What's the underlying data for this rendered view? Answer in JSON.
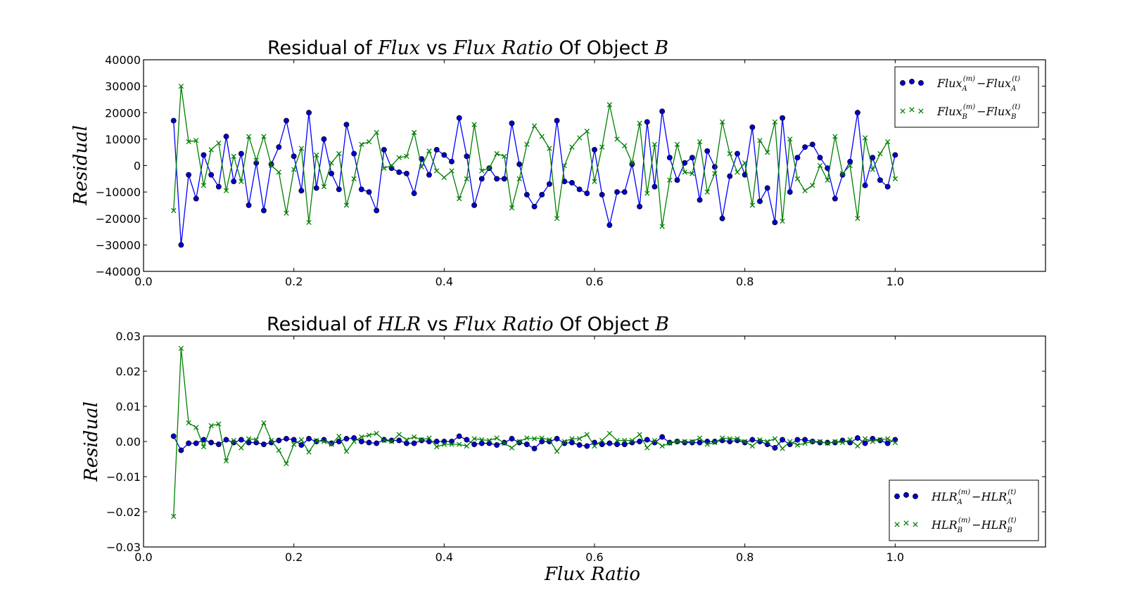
{
  "chart_data": [
    {
      "type": "line",
      "title": {
        "prefix": "Residual of ",
        "quantity": "Flux",
        "mid": " vs ",
        "ratio": "Flux Ratio",
        "of": " Of Object ",
        "object": "B"
      },
      "ylabel": "Residual",
      "xlabel": "",
      "xlim": [
        0.0,
        1.2
      ],
      "ylim": [
        -40000,
        40000
      ],
      "xticks": [
        "0.0",
        "0.2",
        "0.4",
        "0.6",
        "0.8",
        "1.0"
      ],
      "yticks": [
        "40000",
        "30000",
        "20000",
        "10000",
        "0",
        "−10000",
        "−20000",
        "−30000",
        "−40000"
      ],
      "grid": false,
      "legend_position": "top-right",
      "x": [
        0.04,
        0.05,
        0.06,
        0.07,
        0.08,
        0.09,
        0.1,
        0.11,
        0.12,
        0.13,
        0.14,
        0.15,
        0.16,
        0.17,
        0.18,
        0.19,
        0.2,
        0.21,
        0.22,
        0.23,
        0.24,
        0.25,
        0.26,
        0.27,
        0.28,
        0.29,
        0.3,
        0.31,
        0.32,
        0.33,
        0.34,
        0.35,
        0.36,
        0.37,
        0.38,
        0.39,
        0.4,
        0.41,
        0.42,
        0.43,
        0.44,
        0.45,
        0.46,
        0.47,
        0.48,
        0.49,
        0.5,
        0.51,
        0.52,
        0.53,
        0.54,
        0.55,
        0.56,
        0.57,
        0.58,
        0.59,
        0.6,
        0.61,
        0.62,
        0.63,
        0.64,
        0.65,
        0.66,
        0.67,
        0.68,
        0.69,
        0.7,
        0.71,
        0.72,
        0.73,
        0.74,
        0.75,
        0.76,
        0.77,
        0.78,
        0.79,
        0.8,
        0.81,
        0.82,
        0.83,
        0.84,
        0.85,
        0.86,
        0.87,
        0.88,
        0.89,
        0.9,
        0.91,
        0.92,
        0.93,
        0.94,
        0.95,
        0.96,
        0.97,
        0.98,
        0.99,
        1.0
      ],
      "series": [
        {
          "legend_base": "Flux",
          "legend_var_a": "A",
          "legend_var_b": "A",
          "marker": "circle",
          "color": "#0000ff",
          "marker_color": "#0000cc",
          "values": [
            17000,
            -30000,
            -3500,
            -12500,
            4000,
            -3500,
            -8000,
            11000,
            -6000,
            4500,
            -15000,
            1000,
            -17000,
            500,
            7000,
            17000,
            3500,
            -9500,
            20000,
            -8500,
            10000,
            -3000,
            -9000,
            15500,
            4500,
            -9000,
            -10000,
            -17000,
            6000,
            -1000,
            -2500,
            -3000,
            -10500,
            2500,
            -3500,
            6000,
            4000,
            1500,
            18000,
            3500,
            -15000,
            -5000,
            -1000,
            -5000,
            -5000,
            16000,
            500,
            -11000,
            -15500,
            -11000,
            -7000,
            17000,
            -6000,
            -6500,
            -9000,
            -10500,
            6000,
            -11000,
            -22500,
            -10000,
            -10000,
            500,
            -15500,
            16500,
            -8000,
            20500,
            3000,
            -5500,
            1000,
            3000,
            -13000,
            5500,
            -500,
            -20000,
            -4000,
            4500,
            -3500,
            14500,
            -13500,
            -8500,
            -21500,
            18000,
            -10000,
            3000,
            7000,
            8000,
            3000,
            -1000,
            -12500,
            -3500,
            1500,
            20000,
            -7500,
            3000,
            -5500,
            -8000,
            4000
          ]
        },
        {
          "legend_base": "Flux",
          "legend_var_a": "B",
          "legend_var_b": "B",
          "marker": "x",
          "color": "#008000",
          "marker_color": "#008000",
          "values": [
            -17000,
            30000,
            9000,
            9500,
            -7500,
            6000,
            8500,
            -9500,
            3500,
            -6000,
            11000,
            2000,
            11000,
            0,
            -2500,
            -18000,
            -1500,
            6500,
            -21500,
            4000,
            -8000,
            1000,
            4500,
            -15000,
            -5000,
            8000,
            9000,
            12500,
            -1000,
            0,
            3000,
            3500,
            12500,
            -500,
            5500,
            -2000,
            -4500,
            -2000,
            -12500,
            -5000,
            15500,
            -2000,
            -1000,
            4500,
            3500,
            -16000,
            -5000,
            8000,
            15000,
            11000,
            6500,
            -20000,
            0,
            7000,
            10500,
            13000,
            -6000,
            7000,
            23000,
            10000,
            7500,
            1000,
            16000,
            -10500,
            8000,
            -23000,
            -5500,
            8000,
            -2500,
            -3000,
            9000,
            -10000,
            -3000,
            16500,
            4500,
            -2500,
            1000,
            -15000,
            9500,
            5000,
            16500,
            -21000,
            10000,
            -5000,
            -9500,
            -7500,
            0,
            -5500,
            11000,
            -3000,
            0,
            -20000,
            10500,
            -1500,
            4500,
            9000,
            -5000
          ]
        }
      ]
    },
    {
      "type": "line",
      "title": {
        "prefix": "Residual of ",
        "quantity": "HLR",
        "mid": " vs ",
        "ratio": "Flux Ratio",
        "of": " Of Object ",
        "object": "B"
      },
      "ylabel": "Residual",
      "xlabel": "Flux Ratio",
      "xlim": [
        0.0,
        1.2
      ],
      "ylim": [
        -0.03,
        0.03
      ],
      "xticks": [
        "0.0",
        "0.2",
        "0.4",
        "0.6",
        "0.8",
        "1.0"
      ],
      "yticks": [
        "0.03",
        "0.02",
        "0.01",
        "0.00",
        "−0.01",
        "−0.02",
        "−0.03"
      ],
      "grid": false,
      "legend_position": "lower-right",
      "x": [
        0.04,
        0.05,
        0.06,
        0.07,
        0.08,
        0.09,
        0.1,
        0.11,
        0.12,
        0.13,
        0.14,
        0.15,
        0.16,
        0.17,
        0.18,
        0.19,
        0.2,
        0.21,
        0.22,
        0.23,
        0.24,
        0.25,
        0.26,
        0.27,
        0.28,
        0.29,
        0.3,
        0.31,
        0.32,
        0.33,
        0.34,
        0.35,
        0.36,
        0.37,
        0.38,
        0.39,
        0.4,
        0.41,
        0.42,
        0.43,
        0.44,
        0.45,
        0.46,
        0.47,
        0.48,
        0.49,
        0.5,
        0.51,
        0.52,
        0.53,
        0.54,
        0.55,
        0.56,
        0.57,
        0.58,
        0.59,
        0.6,
        0.61,
        0.62,
        0.63,
        0.64,
        0.65,
        0.66,
        0.67,
        0.68,
        0.69,
        0.7,
        0.71,
        0.72,
        0.73,
        0.74,
        0.75,
        0.76,
        0.77,
        0.78,
        0.79,
        0.8,
        0.81,
        0.82,
        0.83,
        0.84,
        0.85,
        0.86,
        0.87,
        0.88,
        0.89,
        0.9,
        0.91,
        0.92,
        0.93,
        0.94,
        0.95,
        0.96,
        0.97,
        0.98,
        0.99,
        1.0
      ],
      "series": [
        {
          "legend_base": "HLR",
          "legend_var_a": "A",
          "legend_var_b": "A",
          "marker": "circle",
          "color": "#0000ff",
          "marker_color": "#0000cc",
          "values": [
            0.0015,
            -0.0025,
            -0.0005,
            -0.0005,
            0.0005,
            -0.0003,
            -0.0008,
            0.0005,
            -0.0003,
            0.0005,
            -0.0003,
            -0.0003,
            -0.0008,
            -0.0003,
            0.0003,
            0.0008,
            0.0005,
            -0.001,
            0.0008,
            0.0,
            0.0005,
            -0.0005,
            0.0,
            0.0008,
            0.001,
            0.0,
            -0.0003,
            -0.0005,
            0.0005,
            0.0003,
            0.0003,
            -0.0005,
            -0.0005,
            0.0003,
            0.0,
            0.0,
            0.0,
            0.0,
            0.0015,
            0.0005,
            -0.0008,
            -0.0005,
            -0.0005,
            -0.001,
            -0.0003,
            0.0008,
            -0.0003,
            -0.0008,
            -0.002,
            0.0,
            0.0,
            0.0008,
            -0.0005,
            -0.0003,
            -0.001,
            -0.0013,
            -0.0003,
            -0.0008,
            -0.0005,
            -0.0008,
            -0.0008,
            -0.0003,
            0.0,
            0.0005,
            -0.0003,
            0.0013,
            -0.0003,
            0.0,
            -0.0003,
            -0.0003,
            -0.0003,
            0.0,
            0.0,
            0.0003,
            0.0,
            0.0003,
            -0.0003,
            0.0005,
            0.0,
            -0.0008,
            -0.0018,
            0.0005,
            -0.0008,
            0.0005,
            0.0005,
            0.0,
            -0.0003,
            -0.0003,
            -0.0003,
            0.0003,
            -0.0003,
            0.001,
            -0.0005,
            0.0008,
            0.0003,
            -0.0005,
            0.0005
          ]
        },
        {
          "legend_base": "HLR",
          "legend_var_a": "B",
          "legend_var_b": "B",
          "marker": "x",
          "color": "#008000",
          "marker_color": "#008000",
          "values": [
            -0.0213,
            0.0265,
            0.0053,
            0.004,
            -0.0015,
            0.0045,
            0.005,
            -0.0055,
            0.0003,
            -0.0018,
            0.0008,
            0.0005,
            0.0053,
            0.0003,
            -0.0025,
            -0.0063,
            -0.0008,
            0.0005,
            -0.003,
            0.0003,
            0.0,
            -0.0008,
            0.0015,
            -0.0028,
            0.0,
            0.0013,
            0.0018,
            0.0023,
            0.0003,
            0.0,
            0.002,
            0.0005,
            0.0013,
            0.0005,
            0.001,
            -0.0015,
            -0.0008,
            -0.0008,
            -0.0008,
            -0.0013,
            0.0008,
            0.0005,
            0.0003,
            0.001,
            -0.0005,
            -0.0018,
            0.0,
            0.001,
            0.0008,
            0.001,
            0.0005,
            -0.0028,
            0.0,
            0.0008,
            0.0008,
            0.002,
            -0.0013,
            0.0003,
            0.0023,
            0.0003,
            0.0003,
            0.0003,
            0.002,
            -0.0018,
            0.0003,
            -0.0013,
            -0.0005,
            0.0,
            0.0,
            0.0,
            0.001,
            -0.0008,
            -0.0003,
            0.001,
            0.0008,
            0.0008,
            0.0,
            -0.0013,
            0.0005,
            0.0,
            0.0008,
            -0.002,
            0.0,
            -0.001,
            -0.0005,
            0.0,
            0.0,
            -0.0005,
            0.0,
            -0.0003,
            0.0005,
            -0.0013,
            0.0008,
            0.0,
            0.0005,
            0.0008,
            -0.0003
          ]
        }
      ]
    }
  ]
}
